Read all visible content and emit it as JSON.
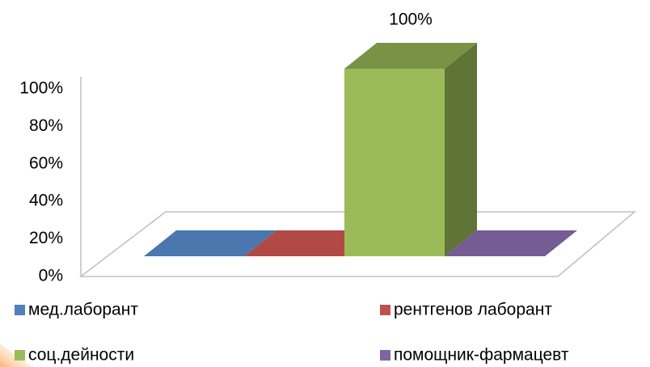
{
  "chart_data": {
    "type": "bar3d",
    "categories": [
      null
    ],
    "series": [
      {
        "name": "мед.лаборант",
        "color": "#4f81bd",
        "values": [
          0
        ]
      },
      {
        "name": "рентгенов лаборант",
        "color": "#c0504d",
        "values": [
          0
        ]
      },
      {
        "name": "соц.дейности",
        "color": "#9bbb59",
        "values": [
          100
        ],
        "value_labels": [
          "100%"
        ]
      },
      {
        "name": "помощник-фармацевт",
        "color": "#8064a2",
        "values": [
          0
        ]
      }
    ],
    "ylim": [
      0,
      100
    ],
    "yticks": [
      {
        "value": 0,
        "label": "0%"
      },
      {
        "value": 20,
        "label": "20%"
      },
      {
        "value": 40,
        "label": "40%"
      },
      {
        "value": 60,
        "label": "60%"
      },
      {
        "value": 80,
        "label": "80%"
      },
      {
        "value": 100,
        "label": "100%"
      }
    ],
    "legend": "bottom"
  }
}
